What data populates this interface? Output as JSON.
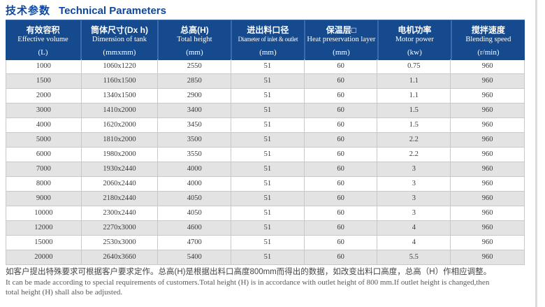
{
  "page": {
    "title_zh": "技术参数",
    "title_en": "Technical Parameters"
  },
  "table": {
    "columns": [
      {
        "zh": "有效容积",
        "en": "Effective volume",
        "unit": "(L)"
      },
      {
        "zh": "筒体尺寸(Dx h)",
        "en": "Dimension of tank",
        "unit": "(mmxmm)"
      },
      {
        "zh": "总高(H)",
        "en": "Total height",
        "unit": "(mm)"
      },
      {
        "zh": "进出料口径",
        "en": "Diameter of inlet & outlet",
        "unit": "(mm)"
      },
      {
        "zh": "保温层□",
        "en": "Heat preservation layer",
        "unit": "(mm)"
      },
      {
        "zh": "电机功率",
        "en": "Motor power",
        "unit": "(kw)"
      },
      {
        "zh": "搅拌速度",
        "en": "Blending speed",
        "unit": "(r/min)"
      }
    ],
    "rows": [
      [
        "1000",
        "1060x1220",
        "2550",
        "51",
        "60",
        "0.75",
        "960"
      ],
      [
        "1500",
        "1160x1500",
        "2850",
        "51",
        "60",
        "1.1",
        "960"
      ],
      [
        "2000",
        "1340x1500",
        "2900",
        "51",
        "60",
        "1.1",
        "960"
      ],
      [
        "3000",
        "1410x2000",
        "3400",
        "51",
        "60",
        "1.5",
        "960"
      ],
      [
        "4000",
        "1620x2000",
        "3450",
        "51",
        "60",
        "1.5",
        "960"
      ],
      [
        "5000",
        "1810x2000",
        "3500",
        "51",
        "60",
        "2.2",
        "960"
      ],
      [
        "6000",
        "1980x2000",
        "3550",
        "51",
        "60",
        "2.2",
        "960"
      ],
      [
        "7000",
        "1930x2440",
        "4000",
        "51",
        "60",
        "3",
        "960"
      ],
      [
        "8000",
        "2060x2440",
        "4000",
        "51",
        "60",
        "3",
        "960"
      ],
      [
        "9000",
        "2180x2440",
        "4050",
        "51",
        "60",
        "3",
        "960"
      ],
      [
        "10000",
        "2300x2440",
        "4050",
        "51",
        "60",
        "3",
        "960"
      ],
      [
        "12000",
        "2270x3000",
        "4600",
        "51",
        "60",
        "4",
        "960"
      ],
      [
        "15000",
        "2530x3000",
        "4700",
        "51",
        "60",
        "4",
        "960"
      ],
      [
        "20000",
        "2640x3660",
        "5400",
        "51",
        "60",
        "5.5",
        "960"
      ]
    ]
  },
  "footer": {
    "note_zh": "如客户提出特殊要求可根据客户要求定作。总高(H)是根据出料口高度800mm而得出的数据，如改变出料口高度，总高（H）作相应调整。",
    "note_en_line1": "It can be made according to special requirements of customers.Total height (H) is in accordance with outlet height of 800 mm.If outlet height is changed,then",
    "note_en_line2": "total height (H) shall also be adjusted."
  },
  "colors": {
    "title_blue": "#0c47a1",
    "header_bg": "#154a8e",
    "header_divider": "#3a6cab",
    "row_alt_bg": "#e3e3e4",
    "grid_border": "#c9c9c9"
  }
}
